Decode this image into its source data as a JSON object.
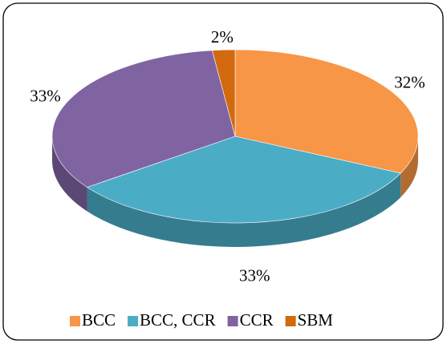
{
  "chart_data": {
    "type": "pie",
    "categories": [
      "BCC",
      "BCC, CCR",
      "CCR",
      "SBM"
    ],
    "values": [
      32,
      33,
      33,
      2
    ],
    "value_labels": [
      "32%",
      "33%",
      "33%",
      "2%"
    ],
    "colors": [
      "#f79646",
      "#4bacc6",
      "#8064a2",
      "#d2690e"
    ],
    "legend": "bottom"
  }
}
